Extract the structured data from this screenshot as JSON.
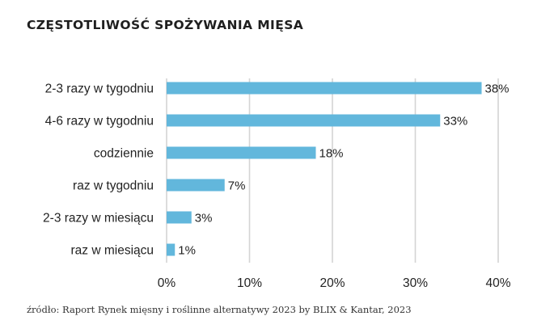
{
  "chart_data": {
    "type": "bar",
    "orientation": "horizontal",
    "title": "CZĘSTOTLIWOŚĆ SPOŻYWANIA MIĘSA",
    "categories": [
      "2-3 razy w tygodniu",
      "4-6 razy w tygodniu",
      "codziennie",
      "raz w tygodniu",
      "2-3 razy w miesiącu",
      "raz w miesiącu"
    ],
    "values": [
      38,
      33,
      18,
      7,
      3,
      1
    ],
    "value_labels": [
      "38%",
      "33%",
      "18%",
      "7%",
      "3%",
      "1%"
    ],
    "xlim": [
      0,
      40
    ],
    "xticks": [
      0,
      10,
      20,
      30,
      40
    ],
    "xtick_labels": [
      "0%",
      "10%",
      "20%",
      "30%",
      "40%"
    ],
    "grid": "vertical",
    "bar_color": "#62b7dc",
    "grid_color": "#d4d4d4"
  },
  "source": "źródło: Raport Rynek mięsny i roślinne alternatywy 2023 by BLIX & Kantar, 2023"
}
